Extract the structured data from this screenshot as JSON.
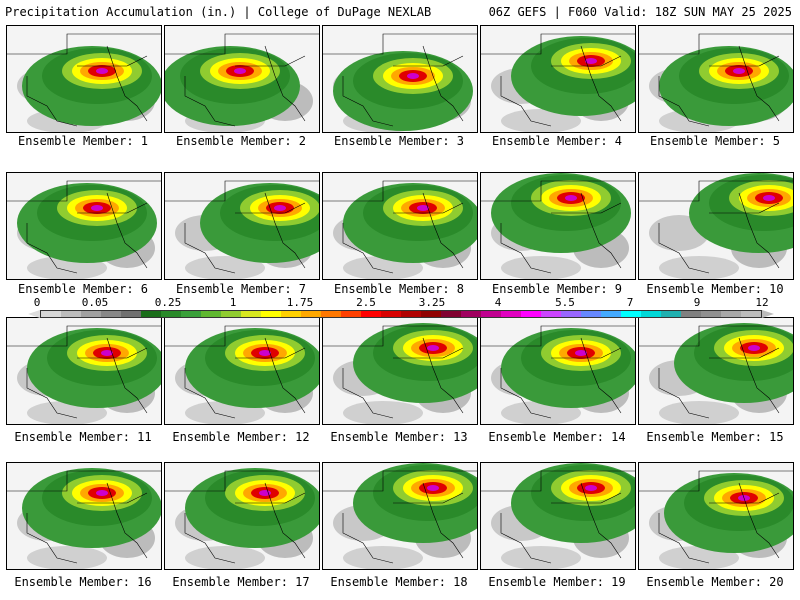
{
  "header": {
    "left": "Precipitation Accumulation (in.) | College of DuPage NEXLAB",
    "right": "06Z GEFS | F060 Valid: 18Z SUN MAY 25 2025"
  },
  "scale": {
    "ticks": [
      "0",
      "0.05",
      "0.25",
      "1",
      "1.75",
      "2.5",
      "3.25",
      "4",
      "5.5",
      "7",
      "9",
      "12"
    ],
    "colors": [
      "#d8d8d8",
      "#bcbcbc",
      "#a0a0a0",
      "#888888",
      "#707070",
      "#1a6e1a",
      "#2a8a2a",
      "#3aa03a",
      "#60b830",
      "#90cc30",
      "#d8e820",
      "#ffff00",
      "#ffd000",
      "#ffa800",
      "#ff7800",
      "#ff4000",
      "#ff0000",
      "#d80000",
      "#b00000",
      "#900000",
      "#800030",
      "#a00060",
      "#c00090",
      "#e000c0",
      "#ff00ff",
      "#cc44ff",
      "#9966ff",
      "#6688ff",
      "#44aaff",
      "#00ffff",
      "#00d8d8",
      "#20b0b0",
      "#808080",
      "#909090",
      "#a8a8a8",
      "#bcbcbc"
    ]
  },
  "panels": [
    {
      "label": "Ensemble Member: 1"
    },
    {
      "label": "Ensemble Member: 2"
    },
    {
      "label": "Ensemble Member: 3"
    },
    {
      "label": "Ensemble Member: 4"
    },
    {
      "label": "Ensemble Member: 5"
    },
    {
      "label": "Ensemble Member: 6"
    },
    {
      "label": "Ensemble Member: 7"
    },
    {
      "label": "Ensemble Member: 8"
    },
    {
      "label": "Ensemble Member: 9"
    },
    {
      "label": "Ensemble Member: 10"
    },
    {
      "label": "Ensemble Member: 11"
    },
    {
      "label": "Ensemble Member: 12"
    },
    {
      "label": "Ensemble Member: 13"
    },
    {
      "label": "Ensemble Member: 14"
    },
    {
      "label": "Ensemble Member: 15"
    },
    {
      "label": "Ensemble Member: 16"
    },
    {
      "label": "Ensemble Member: 17"
    },
    {
      "label": "Ensemble Member: 18"
    },
    {
      "label": "Ensemble Member: 19"
    },
    {
      "label": "Ensemble Member: 20"
    }
  ]
}
